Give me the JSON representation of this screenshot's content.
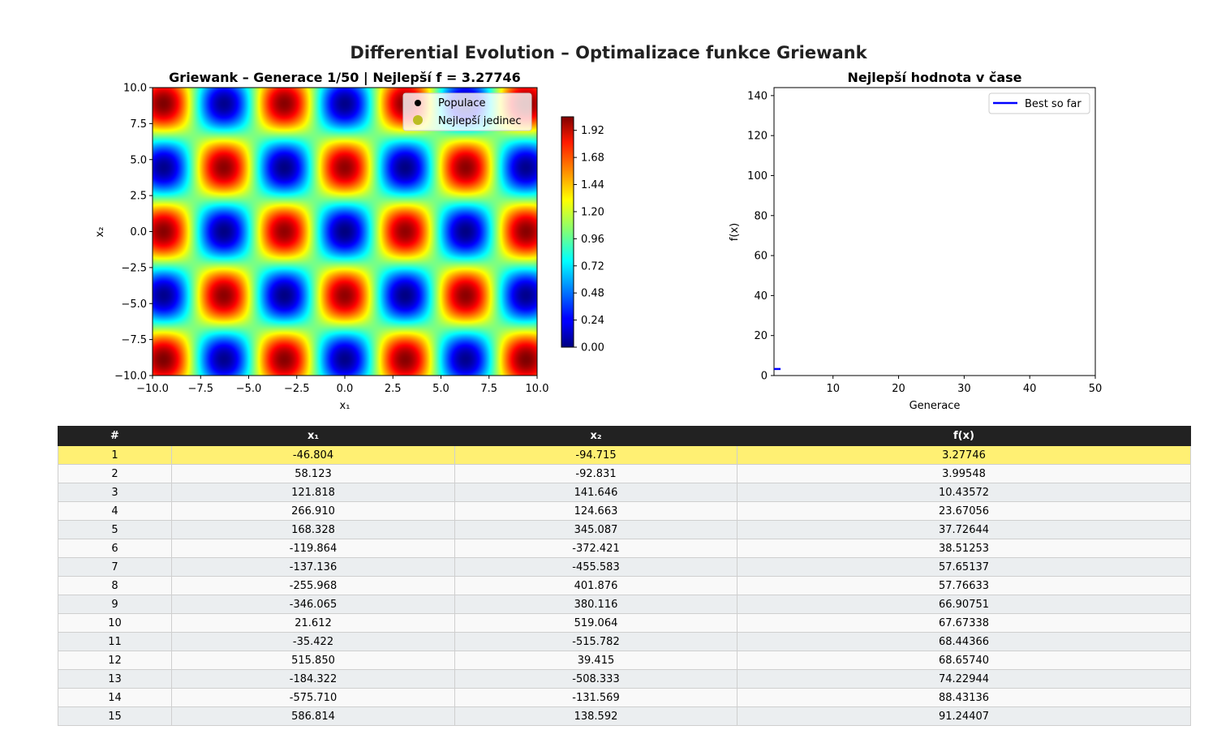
{
  "figure_title": "Differential Evolution – Optimalizace funkce Griewank",
  "chart_data": [
    {
      "type": "heatmap",
      "title": "Griewank – Generace 1/50 | Nejlepší f = 3.27746",
      "xlabel": "x₁",
      "ylabel": "x₂",
      "xlim": [
        -10,
        10
      ],
      "ylim": [
        -10,
        10
      ],
      "xticks": [
        "−10.0",
        "−7.5",
        "−5.0",
        "−2.5",
        "0.0",
        "2.5",
        "5.0",
        "7.5",
        "10.0"
      ],
      "yticks": [
        "−10.0",
        "−7.5",
        "−5.0",
        "−2.5",
        "0.0",
        "2.5",
        "5.0",
        "7.5",
        "10.0"
      ],
      "function": "griewank",
      "colormap": "jet",
      "colorbar_range": [
        0,
        2.04
      ],
      "colorbar_ticks": [
        "0.00",
        "0.24",
        "0.48",
        "0.72",
        "0.96",
        "1.20",
        "1.44",
        "1.68",
        "1.92"
      ],
      "legend_position": "upper-right",
      "legend": [
        {
          "label": "Populace",
          "color": "#000000"
        },
        {
          "label": "Nejlepší jedinec",
          "color": "#bcbd22"
        }
      ]
    },
    {
      "type": "line",
      "title": "Nejlepší hodnota v čase",
      "xlabel": "Generace",
      "ylabel": "f(x)",
      "xlim": [
        1,
        50
      ],
      "ylim": [
        0,
        144
      ],
      "xticks": [
        10,
        20,
        30,
        40,
        50
      ],
      "yticks": [
        0,
        20,
        40,
        60,
        80,
        100,
        120,
        140
      ],
      "legend_position": "upper-right",
      "series": [
        {
          "name": "Best so far",
          "color": "#0000ff",
          "x": [
            1,
            2
          ],
          "y": [
            3.27746,
            3.27746
          ]
        }
      ]
    }
  ],
  "table": {
    "headers": [
      "#",
      "x₁",
      "x₂",
      "f(x)"
    ],
    "highlight_color": "#fff073",
    "rows": [
      [
        "1",
        "-46.804",
        "-94.715",
        "3.27746"
      ],
      [
        "2",
        "58.123",
        "-92.831",
        "3.99548"
      ],
      [
        "3",
        "121.818",
        "141.646",
        "10.43572"
      ],
      [
        "4",
        "266.910",
        "124.663",
        "23.67056"
      ],
      [
        "5",
        "168.328",
        "345.087",
        "37.72644"
      ],
      [
        "6",
        "-119.864",
        "-372.421",
        "38.51253"
      ],
      [
        "7",
        "-137.136",
        "-455.583",
        "57.65137"
      ],
      [
        "8",
        "-255.968",
        "401.876",
        "57.76633"
      ],
      [
        "9",
        "-346.065",
        "380.116",
        "66.90751"
      ],
      [
        "10",
        "21.612",
        "519.064",
        "67.67338"
      ],
      [
        "11",
        "-35.422",
        "-515.782",
        "68.44366"
      ],
      [
        "12",
        "515.850",
        "39.415",
        "68.65740"
      ],
      [
        "13",
        "-184.322",
        "-508.333",
        "74.22944"
      ],
      [
        "14",
        "-575.710",
        "-131.569",
        "88.43136"
      ],
      [
        "15",
        "586.814",
        "138.592",
        "91.24407"
      ]
    ]
  }
}
